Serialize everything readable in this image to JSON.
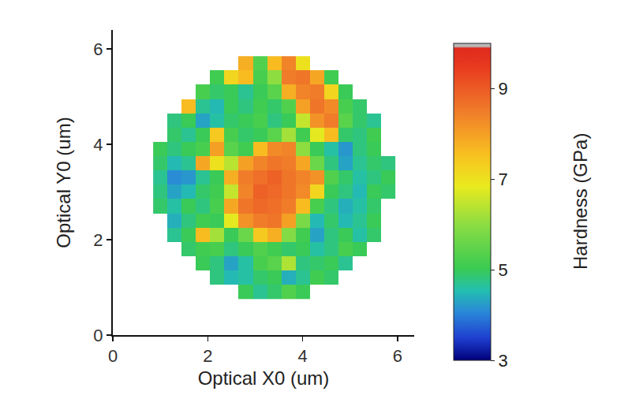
{
  "chart_data": {
    "type": "heatmap",
    "x_label": "Optical X0 (um)",
    "y_label": "Optical Y0 (um)",
    "x": [
      1.0,
      1.3,
      1.6,
      1.9,
      2.2,
      2.5,
      2.8,
      3.1,
      3.4,
      3.7,
      4.0,
      4.3,
      4.6,
      4.9,
      5.2,
      5.5,
      5.8
    ],
    "y": [
      0.9,
      1.2,
      1.5,
      1.8,
      2.1,
      2.4,
      2.7,
      3.0,
      3.3,
      3.6,
      3.9,
      4.2,
      4.5,
      4.8,
      5.1,
      5.4,
      5.7
    ],
    "z": [
      [
        null,
        null,
        null,
        null,
        null,
        null,
        5.0,
        4.7,
        4.9,
        5.3,
        5.0,
        null,
        null,
        null,
        null,
        null,
        null
      ],
      [
        null,
        null,
        null,
        null,
        4.8,
        4.5,
        4.6,
        4.9,
        5.0,
        4.4,
        4.7,
        5.1,
        4.9,
        null,
        null,
        null,
        null
      ],
      [
        null,
        null,
        null,
        5.0,
        4.8,
        4.3,
        4.6,
        5.2,
        5.4,
        6.3,
        4.8,
        4.9,
        5.0,
        4.7,
        null,
        null,
        null
      ],
      [
        null,
        null,
        4.9,
        5.1,
        5.2,
        4.8,
        5.0,
        5.3,
        5.1,
        4.9,
        5.0,
        4.6,
        4.8,
        5.2,
        5.0,
        null,
        null
      ],
      [
        null,
        4.7,
        5.0,
        7.6,
        6.2,
        5.0,
        5.6,
        7.4,
        7.8,
        5.9,
        5.1,
        4.3,
        4.8,
        5.0,
        4.6,
        4.9,
        null
      ],
      [
        null,
        4.4,
        4.8,
        5.1,
        5.0,
        6.8,
        8.2,
        8.5,
        8.6,
        8.0,
        5.8,
        4.5,
        4.9,
        4.5,
        4.7,
        5.0,
        null
      ],
      [
        4.9,
        4.6,
        5.0,
        4.8,
        5.2,
        7.9,
        8.6,
        8.8,
        8.7,
        8.5,
        7.6,
        5.2,
        4.8,
        4.4,
        4.6,
        4.9,
        null
      ],
      [
        4.8,
        4.3,
        4.5,
        4.9,
        5.1,
        6.5,
        8.4,
        8.9,
        8.8,
        8.6,
        8.3,
        7.2,
        5.0,
        4.8,
        4.5,
        5.0,
        4.9
      ],
      [
        4.7,
        4.1,
        4.2,
        4.7,
        5.0,
        7.8,
        8.5,
        8.7,
        8.9,
        8.6,
        8.4,
        8.2,
        5.3,
        4.9,
        4.6,
        4.8,
        5.0
      ],
      [
        4.9,
        4.5,
        4.7,
        7.9,
        7.0,
        6.4,
        8.0,
        8.4,
        8.6,
        8.5,
        7.9,
        5.6,
        4.8,
        4.3,
        4.7,
        4.9,
        4.8
      ],
      [
        5.0,
        4.8,
        5.0,
        5.2,
        8.0,
        5.4,
        5.1,
        7.6,
        8.3,
        8.4,
        6.0,
        5.0,
        4.6,
        4.2,
        4.8,
        5.0,
        null
      ],
      [
        null,
        4.9,
        4.7,
        5.0,
        7.4,
        5.2,
        4.9,
        5.0,
        5.4,
        6.2,
        5.1,
        6.8,
        7.6,
        4.9,
        4.8,
        5.1,
        null
      ],
      [
        null,
        4.8,
        5.0,
        4.3,
        4.6,
        4.9,
        5.0,
        5.2,
        4.8,
        5.0,
        6.5,
        8.2,
        8.5,
        5.4,
        4.9,
        4.7,
        null
      ],
      [
        null,
        null,
        7.6,
        4.7,
        4.5,
        5.0,
        4.8,
        5.1,
        4.9,
        5.3,
        8.0,
        8.6,
        8.3,
        5.2,
        4.9,
        null,
        null
      ],
      [
        null,
        null,
        null,
        5.2,
        4.9,
        5.0,
        4.7,
        5.0,
        5.4,
        7.8,
        8.4,
        8.5,
        7.2,
        5.0,
        null,
        null,
        null
      ],
      [
        null,
        null,
        null,
        null,
        5.1,
        7.2,
        7.6,
        5.2,
        6.0,
        8.5,
        8.6,
        7.9,
        5.1,
        null,
        null,
        null,
        null
      ],
      [
        null,
        null,
        null,
        null,
        null,
        null,
        7.8,
        5.3,
        7.6,
        8.4,
        7.0,
        null,
        null,
        null,
        null,
        null,
        null
      ]
    ],
    "xlim": [
      0,
      6.35
    ],
    "ylim": [
      0,
      6.4
    ],
    "xticks": [
      0,
      2,
      4,
      6
    ],
    "yticks": [
      0,
      2,
      4,
      6
    ],
    "colorbar": {
      "title": "Hardness (GPa)",
      "range": [
        3,
        10
      ],
      "ticks": [
        3,
        5,
        7,
        9
      ]
    }
  }
}
